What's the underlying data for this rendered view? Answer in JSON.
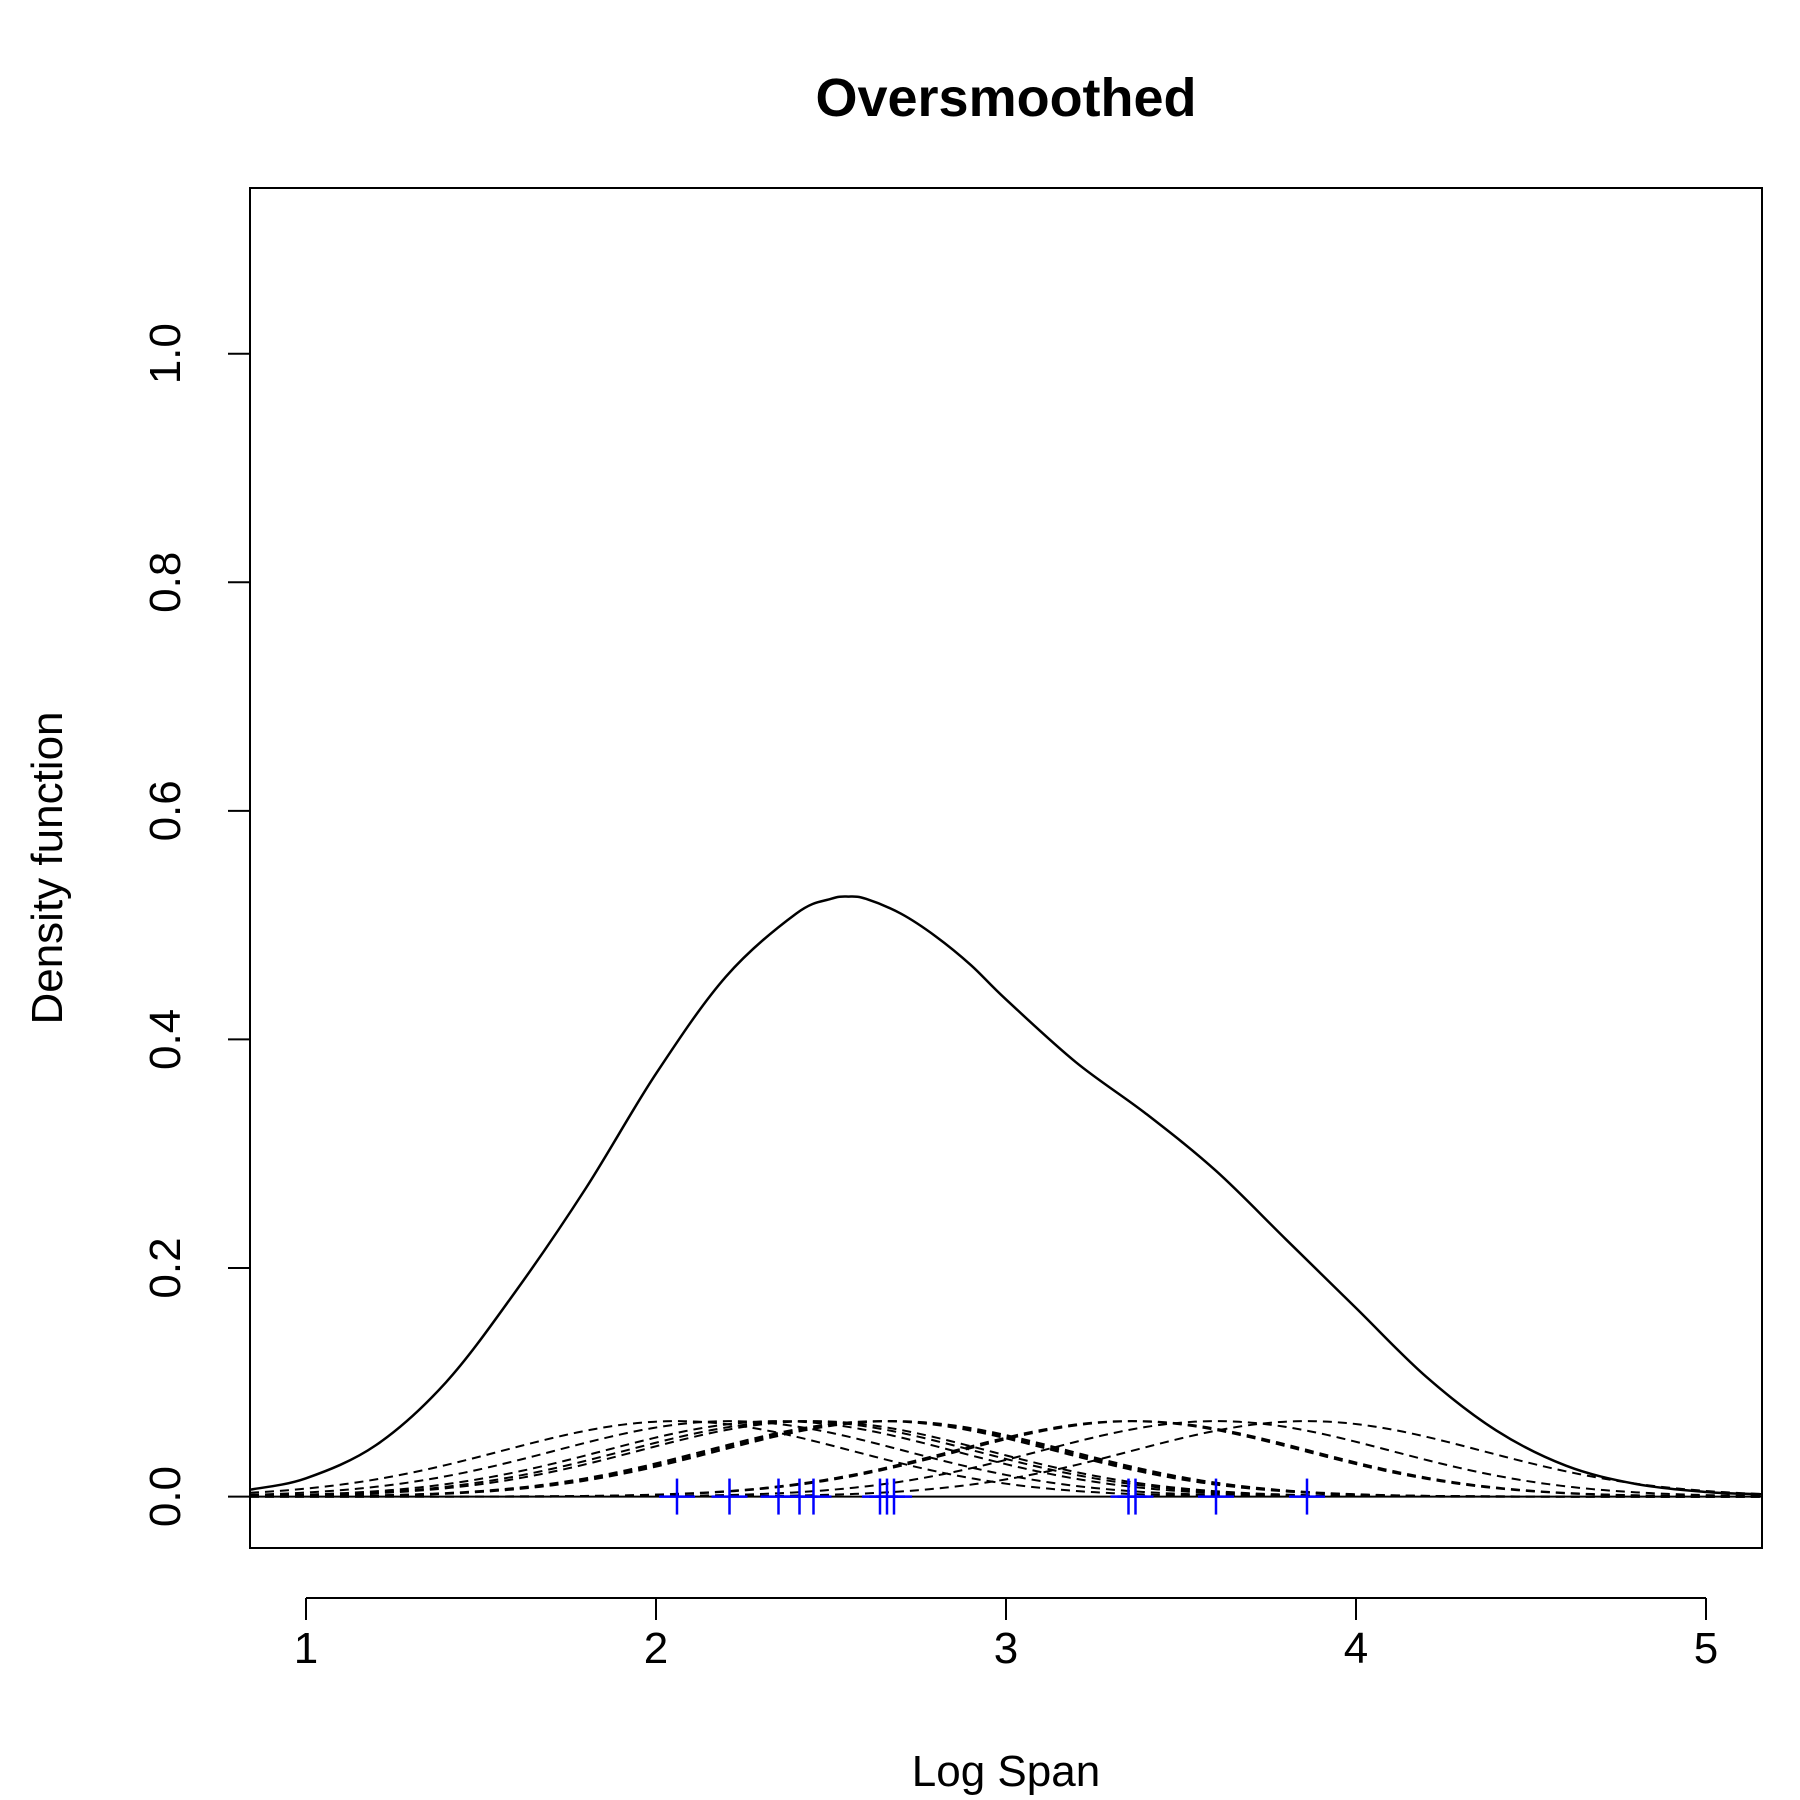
{
  "chart_data": {
    "type": "line",
    "title": "Oversmoothed",
    "xlabel": "Log Span",
    "ylabel": "Density function",
    "xlim": [
      0.84,
      5.16
    ],
    "ylim": [
      -0.045,
      1.145
    ],
    "x_ticks": [
      1,
      2,
      3,
      4,
      5
    ],
    "x_tick_labels": [
      "1",
      "2",
      "3",
      "4",
      "5"
    ],
    "y_ticks": [
      0.0,
      0.2,
      0.4,
      0.6,
      0.8,
      1.0
    ],
    "y_tick_labels": [
      "0.0",
      "0.2",
      "0.4",
      "0.6",
      "0.8",
      "1.0"
    ],
    "grid": false,
    "density_curve": {
      "x": [
        0.84,
        1.0,
        1.2,
        1.4,
        1.6,
        1.8,
        2.0,
        2.2,
        2.4,
        2.5,
        2.55,
        2.6,
        2.7,
        2.8,
        2.9,
        3.0,
        3.2,
        3.4,
        3.6,
        3.8,
        4.0,
        4.2,
        4.4,
        4.6,
        4.8,
        5.0,
        5.16
      ],
      "y": [
        0.006,
        0.016,
        0.045,
        0.1,
        0.18,
        0.27,
        0.37,
        0.455,
        0.51,
        0.523,
        0.525,
        0.523,
        0.51,
        0.49,
        0.465,
        0.435,
        0.38,
        0.335,
        0.285,
        0.225,
        0.165,
        0.105,
        0.058,
        0.027,
        0.011,
        0.004,
        0.002
      ]
    },
    "observations": [
      2.06,
      2.21,
      2.35,
      2.41,
      2.45,
      2.64,
      2.66,
      2.68,
      3.35,
      3.37,
      3.6,
      3.86
    ],
    "kernel_peak": 0.066,
    "kernel_sd": 0.5,
    "colors": {
      "density_curve": "#000000",
      "kernel_curves": "#000000",
      "observation_markers": "#0000FF",
      "axes": "#000000"
    }
  }
}
